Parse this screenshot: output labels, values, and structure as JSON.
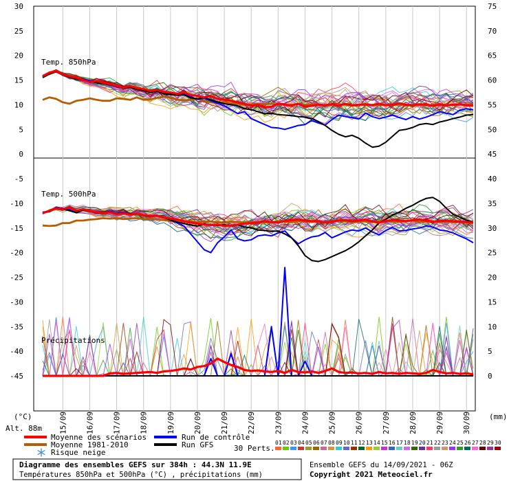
{
  "title": "Diagramme des ensembles GEFS sur 384h : 44.3N 11.9E",
  "subtitle": "Températures 850hPa et 500hPa (°C) , précipitations (mm)",
  "run_info": "Ensemble GEFS du 14/09/2021 - 06Z",
  "copyright": "Copyright 2021 Meteociel.fr",
  "unit_left": "(°C)",
  "unit_right": "(mm)",
  "altitude": "Alt. 88m",
  "panels": {
    "t850": "Temp. 850hPa",
    "t500": "Temp. 500hPa",
    "precip": "Précipitations"
  },
  "legend": {
    "mean_scenarios": "Moyenne des scénarios",
    "mean_clim": "Moyenne 1981-2010",
    "snow_risk": "Risque neige",
    "control": "Run de contrôle",
    "gfs": "Run GFS",
    "perts_label": "30 Perts.",
    "perts": [
      "01",
      "02",
      "03",
      "04",
      "05",
      "06",
      "07",
      "08",
      "09",
      "10",
      "11",
      "12",
      "13",
      "14",
      "15",
      "16",
      "17",
      "18",
      "19",
      "20",
      "21",
      "22",
      "23",
      "24",
      "25",
      "26",
      "27",
      "28",
      "29",
      "30"
    ]
  },
  "colors": {
    "mean": "#ff0000",
    "clim": "#b85c00",
    "control": "#0000ff",
    "gfs": "#000000",
    "snow": "#4a90d9",
    "pert_colors": [
      "#ff6633",
      "#66cc00",
      "#3399ff",
      "#cc3333",
      "#999933",
      "#996600",
      "#cc6699",
      "#cc9933",
      "#33cccc",
      "#6666cc",
      "#993300",
      "#006633",
      "#ff9900",
      "#99cc33",
      "#cc33cc",
      "#3366cc",
      "#66cccc",
      "#cc66ff",
      "#336600",
      "#663399",
      "#ff3366",
      "#999999",
      "#cc9966",
      "#9933ff",
      "#339933",
      "#006666",
      "#ff66cc",
      "#660000",
      "#993399",
      "#990000"
    ]
  },
  "chart_data": {
    "type": "line",
    "x_labels": [
      "15/09",
      "16/09",
      "17/09",
      "18/09",
      "19/09",
      "20/09",
      "21/09",
      "22/09",
      "23/09",
      "24/09",
      "25/09",
      "26/09",
      "27/09",
      "28/09",
      "29/09",
      "30/09"
    ],
    "x_range_hours": [
      0,
      384
    ],
    "x_step_hours": 6,
    "y_left_ticks": [
      30,
      25,
      20,
      15,
      10,
      5,
      0,
      -5,
      -10,
      -15,
      -20,
      -25,
      -30,
      -35,
      -40,
      -45
    ],
    "y_left_range": [
      -45,
      30
    ],
    "y_right_ticks": [
      75,
      70,
      65,
      60,
      55,
      50,
      45,
      40,
      35,
      30,
      25,
      20,
      15,
      10,
      5,
      0
    ],
    "y_right_range": [
      0,
      75
    ],
    "series": [
      {
        "name": "Moyenne des scénarios",
        "t850": [
          15.8,
          16.5,
          16.8,
          16.2,
          15.8,
          15.5,
          15.0,
          14.6,
          14.8,
          14.5,
          14.2,
          13.8,
          13.5,
          13.8,
          13.4,
          13.2,
          12.8,
          13.0,
          12.6,
          12.5,
          12.2,
          12.5,
          12.0,
          11.8,
          11.5,
          11.8,
          11.2,
          11.0,
          10.8,
          10.5,
          10.2,
          9.8,
          10.0,
          9.5,
          9.6,
          10.2,
          10.0,
          9.8,
          10.2,
          9.6,
          9.8,
          10.0,
          9.9,
          10.1,
          9.8,
          10.2,
          9.9,
          10.0,
          10.1,
          9.9,
          10.2,
          9.9,
          10.0,
          10.3,
          10.0,
          9.9,
          10.1,
          10.0,
          9.8,
          10.0,
          9.9,
          10.0,
          10.1,
          9.9,
          9.8
        ],
        "t500": [
          -12.0,
          -11.5,
          -11.0,
          -11.2,
          -10.8,
          -11.5,
          -11.2,
          -11.6,
          -11.8,
          -12.0,
          -11.8,
          -12.2,
          -12.0,
          -12.3,
          -12.1,
          -12.4,
          -12.6,
          -12.5,
          -12.9,
          -13.1,
          -13.3,
          -13.6,
          -13.9,
          -14.1,
          -14.3,
          -14.4,
          -14.3,
          -14.6,
          -14.5,
          -14.3,
          -14.1,
          -14.0,
          -13.9,
          -13.6,
          -13.8,
          -13.9,
          -13.6,
          -13.4,
          -13.3,
          -13.5,
          -13.6,
          -13.6,
          -13.9,
          -13.7,
          -13.5,
          -13.4,
          -13.6,
          -13.5,
          -13.3,
          -13.7,
          -13.9,
          -13.6,
          -13.4,
          -13.5,
          -13.6,
          -13.4,
          -13.3,
          -13.5,
          -13.7,
          -13.6,
          -13.5,
          -13.6,
          -13.7,
          -13.8,
          -13.9
        ],
        "precip": [
          0,
          0,
          0,
          0,
          0,
          0,
          0,
          0,
          0,
          0,
          0.5,
          0.6,
          0.4,
          0.5,
          0.6,
          0.7,
          0.8,
          0.6,
          0.9,
          1.0,
          1.2,
          1.5,
          1.3,
          1.8,
          2.0,
          2.5,
          3.5,
          2.8,
          2.2,
          1.8,
          1.2,
          1.0,
          1.1,
          0.9,
          0.8,
          1.0,
          0.6,
          1.2,
          0.8,
          0.7,
          0.9,
          0.6,
          1.0,
          1.5,
          0.8,
          0.6,
          0.7,
          0.5,
          0.6,
          0.4,
          0.8,
          0.5,
          0.6,
          0.4,
          0.6,
          0.5,
          0.4,
          0.6,
          1.2,
          0.8,
          0.5,
          0.6,
          0.4,
          0.5,
          0.3
        ]
      },
      {
        "name": "Moyenne 1981-2010",
        "t850": [
          11.0,
          11.5,
          11.2,
          10.5,
          10.2,
          10.8,
          11.0,
          11.3,
          11.0,
          10.8,
          10.8,
          11.3,
          11.2,
          11.0,
          11.5,
          11.0,
          11.1,
          11.4,
          11.6,
          11.5,
          11.0,
          10.9,
          11.0,
          11.2,
          10.8,
          10.5,
          10.3,
          10.6,
          10.3,
          10.2,
          10.0,
          10.1,
          10.2,
          10.1,
          10.2,
          10.0,
          10.1,
          10.0,
          10.2,
          10.0,
          10.1,
          10.0,
          9.9,
          10.0,
          10.1,
          10.0,
          9.8,
          10.0,
          9.9,
          10.0,
          9.9,
          10.0,
          10.1,
          10.0,
          9.8,
          10.0,
          10.0,
          9.9,
          10.0,
          10.1,
          10.0,
          9.9,
          10.0,
          10.1,
          10.0
        ],
        "t500": [
          -14.5,
          -14.6,
          -14.5,
          -14.0,
          -14.0,
          -13.5,
          -13.5,
          -13.3,
          -13.2,
          -13.0,
          -13.1,
          -13.0,
          -13.2,
          -13.1,
          -13.0,
          -13.2,
          -13.1,
          -13.3,
          -13.4,
          -13.6,
          -13.5,
          -13.7,
          -13.6,
          -13.8,
          -13.7,
          -13.7,
          -13.8,
          -13.9,
          -13.7,
          -13.8,
          -13.9,
          -13.8,
          -13.7,
          -13.9,
          -13.8,
          -13.6,
          -13.7,
          -13.8,
          -13.6,
          -13.7,
          -13.8,
          -13.7,
          -13.8,
          -13.6,
          -13.5,
          -13.7,
          -13.8,
          -13.6,
          -13.7,
          -13.8,
          -13.6,
          -13.5,
          -13.7,
          -13.8,
          -13.6,
          -13.5,
          -13.8,
          -13.7,
          -13.6,
          -13.8,
          -13.7,
          -13.9,
          -13.8,
          -13.9,
          -14.0
        ]
      },
      {
        "name": "Run de contrôle",
        "t850": [
          15.6,
          16.3,
          16.8,
          16.0,
          15.7,
          15.4,
          15.2,
          14.9,
          14.6,
          14.4,
          14.0,
          13.6,
          13.4,
          13.6,
          13.2,
          13.0,
          12.6,
          12.8,
          12.4,
          12.3,
          12.0,
          12.2,
          11.6,
          11.1,
          11.3,
          10.8,
          10.3,
          9.8,
          9.0,
          8.2,
          8.6,
          7.2,
          6.6,
          6.0,
          5.4,
          5.3,
          5.0,
          5.4,
          5.8,
          6.0,
          6.8,
          6.3,
          5.9,
          7.0,
          7.9,
          7.6,
          7.4,
          7.1,
          8.3,
          7.6,
          7.2,
          7.5,
          7.9,
          7.4,
          7.0,
          7.6,
          7.1,
          7.5,
          8.0,
          8.6,
          8.3,
          8.0,
          8.9,
          9.2,
          9.0
        ],
        "t500": [
          -11.8,
          -11.6,
          -10.8,
          -11.0,
          -11.4,
          -11.8,
          -11.2,
          -11.6,
          -12.0,
          -12.0,
          -11.6,
          -12.0,
          -11.8,
          -12.2,
          -12.0,
          -12.4,
          -12.6,
          -12.4,
          -12.8,
          -13.4,
          -14.0,
          -14.6,
          -16.2,
          -17.8,
          -19.4,
          -20.0,
          -18.0,
          -16.8,
          -15.4,
          -17.2,
          -17.6,
          -17.4,
          -16.6,
          -16.4,
          -16.6,
          -16.0,
          -15.6,
          -17.0,
          -18.2,
          -17.4,
          -16.8,
          -16.6,
          -15.9,
          -17.0,
          -16.4,
          -15.8,
          -15.4,
          -15.6,
          -15.0,
          -15.8,
          -16.4,
          -15.5,
          -14.9,
          -15.6,
          -15.5,
          -15.2,
          -15.0,
          -14.6,
          -14.8,
          -15.4,
          -15.6,
          -16.0,
          -16.6,
          -17.2,
          -18.0
        ],
        "precip": [
          0,
          0,
          0,
          0,
          0,
          0,
          0,
          0,
          0,
          0,
          0,
          0,
          0,
          0,
          0,
          0,
          0,
          0,
          0,
          0,
          0,
          0,
          0,
          0,
          0,
          3.5,
          0,
          0,
          4.5,
          0,
          0,
          0,
          0,
          0,
          10,
          0,
          22,
          0,
          0,
          3,
          0,
          0,
          0,
          0,
          0,
          0,
          0,
          0,
          0,
          0,
          0,
          0,
          0,
          0,
          0,
          0,
          0,
          0,
          0,
          0,
          0,
          0,
          0,
          0,
          0
        ]
      },
      {
        "name": "Run GFS",
        "t850": [
          15.5,
          16.2,
          16.7,
          16.1,
          15.6,
          15.2,
          15.0,
          14.7,
          14.5,
          14.3,
          14.1,
          13.8,
          13.3,
          13.5,
          13.1,
          12.9,
          12.5,
          12.7,
          12.2,
          12.1,
          11.9,
          12.0,
          11.4,
          11.2,
          11.5,
          11.0,
          10.6,
          10.2,
          10.0,
          9.8,
          9.2,
          9.0,
          8.6,
          8.2,
          8.3,
          8.0,
          7.9,
          7.8,
          7.6,
          7.5,
          7.2,
          6.6,
          5.8,
          4.8,
          4.0,
          3.5,
          3.8,
          3.2,
          2.2,
          1.4,
          1.6,
          2.4,
          3.6,
          4.8,
          5.0,
          5.4,
          6.0,
          6.2,
          6.0,
          6.5,
          6.8,
          7.2,
          7.5,
          7.9,
          8.0
        ],
        "t500": [
          -11.9,
          -11.7,
          -11.0,
          -11.2,
          -11.5,
          -11.9,
          -11.4,
          -11.7,
          -11.9,
          -12.1,
          -11.8,
          -12.1,
          -11.9,
          -12.3,
          -12.1,
          -12.5,
          -12.7,
          -12.5,
          -12.9,
          -13.4,
          -13.8,
          -14.1,
          -14.4,
          -14.6,
          -14.2,
          -14.3,
          -14.5,
          -14.3,
          -14.6,
          -14.4,
          -14.8,
          -15.0,
          -15.4,
          -15.5,
          -15.7,
          -15.6,
          -16.2,
          -17.0,
          -18.6,
          -20.6,
          -21.6,
          -21.8,
          -21.4,
          -20.8,
          -20.2,
          -19.6,
          -18.8,
          -17.8,
          -16.6,
          -15.4,
          -14.0,
          -13.2,
          -12.4,
          -11.8,
          -11.0,
          -10.4,
          -9.6,
          -9.0,
          -8.8,
          -9.6,
          -11.0,
          -12.2,
          -12.8,
          -13.4,
          -13.8
        ],
        "precip": [
          0,
          0,
          0,
          0,
          0,
          0,
          0,
          0,
          0,
          0,
          0,
          0,
          0,
          0,
          0,
          0,
          0,
          0,
          0,
          0,
          0,
          0,
          0,
          0,
          0,
          0,
          0,
          0,
          0,
          0,
          0,
          0,
          0,
          0,
          0,
          0,
          0,
          0,
          0,
          0,
          0,
          0,
          0,
          0,
          0,
          0,
          0,
          0,
          0,
          0,
          0,
          0,
          0,
          0,
          0,
          0,
          0,
          0,
          0,
          0,
          0,
          0,
          0,
          0,
          0
        ]
      },
      {
        "name": "Risque neige",
        "t850": [],
        "t500": []
      }
    ]
  }
}
